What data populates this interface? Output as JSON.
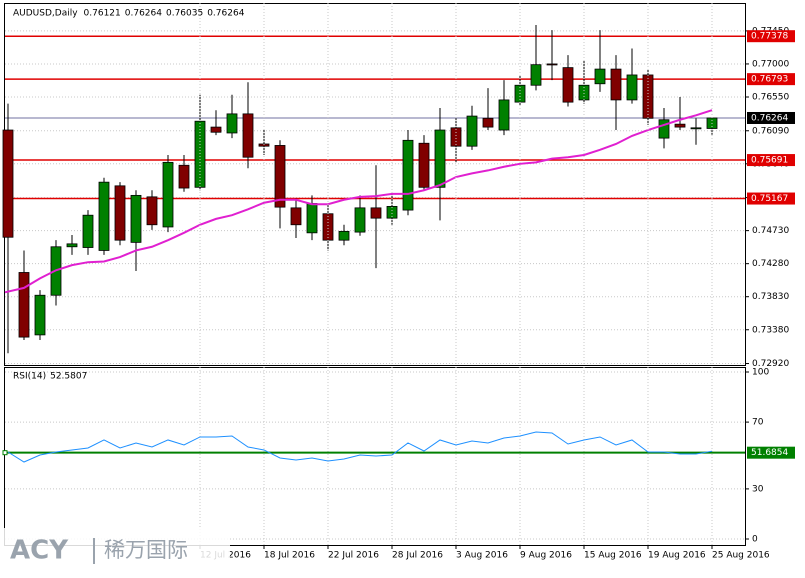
{
  "chart_data": [
    {
      "type": "candlestick",
      "title": "AUDUSD,Daily",
      "header_values": [
        0.76121,
        0.76264,
        0.76035,
        0.76264
      ],
      "open": [
        0.761,
        0.7416,
        0.7331,
        0.7385,
        0.7451,
        0.745,
        0.7446,
        0.7534,
        0.7457,
        0.7519,
        0.7478,
        0.7562,
        0.7532,
        0.7614,
        0.7606,
        0.7632,
        0.7591,
        0.7589,
        0.7504,
        0.747,
        0.7496,
        0.746,
        0.7471,
        0.7504,
        0.749,
        0.7501,
        0.7592,
        0.7532,
        0.7613,
        0.7588,
        0.7626,
        0.761,
        0.7648,
        0.7671,
        0.77,
        0.7695,
        0.7651,
        0.7673,
        0.7693,
        0.7651,
        0.7685,
        0.7599,
        0.7618,
        0.7613,
        0.76121
      ],
      "high": [
        0.7646,
        0.7446,
        0.7392,
        0.746,
        0.7467,
        0.7501,
        0.7545,
        0.7539,
        0.7528,
        0.7528,
        0.7576,
        0.7576,
        0.7658,
        0.7637,
        0.7658,
        0.7675,
        0.761,
        0.7596,
        0.7517,
        0.7521,
        0.7508,
        0.7481,
        0.7521,
        0.7562,
        0.7523,
        0.761,
        0.7603,
        0.764,
        0.7626,
        0.7643,
        0.7667,
        0.7678,
        0.7685,
        0.7753,
        0.7746,
        0.7712,
        0.7705,
        0.7746,
        0.7712,
        0.7721,
        0.7692,
        0.764,
        0.7655,
        0.7626,
        0.76264
      ],
      "low": [
        0.7306,
        0.7324,
        0.7324,
        0.7371,
        0.744,
        0.744,
        0.744,
        0.7453,
        0.7418,
        0.7474,
        0.7471,
        0.7526,
        0.7528,
        0.7603,
        0.7599,
        0.7558,
        0.7576,
        0.7476,
        0.7463,
        0.746,
        0.7446,
        0.7453,
        0.7466,
        0.7422,
        0.7481,
        0.7494,
        0.7528,
        0.7487,
        0.7566,
        0.7583,
        0.761,
        0.7603,
        0.7644,
        0.7664,
        0.7678,
        0.7642,
        0.7646,
        0.7662,
        0.761,
        0.7646,
        0.7617,
        0.7585,
        0.761,
        0.759,
        0.76035
      ],
      "close": [
        0.7464,
        0.7328,
        0.7385,
        0.7451,
        0.7455,
        0.7494,
        0.7539,
        0.746,
        0.7521,
        0.7481,
        0.7566,
        0.7531,
        0.7622,
        0.7607,
        0.7632,
        0.7573,
        0.7588,
        0.7505,
        0.7481,
        0.751,
        0.746,
        0.7472,
        0.7504,
        0.749,
        0.7506,
        0.7596,
        0.7532,
        0.761,
        0.7588,
        0.7629,
        0.7614,
        0.7651,
        0.7671,
        0.7699,
        0.7699,
        0.7648,
        0.7671,
        0.7693,
        0.7651,
        0.7685,
        0.7626,
        0.7624,
        0.7614,
        0.7613,
        0.76264
      ],
      "up_color": "#008000",
      "down_color": "#800000",
      "moving_average": {
        "color": "#e020d0",
        "values": [
          0.7389,
          0.7395,
          0.7408,
          0.7419,
          0.7426,
          0.743,
          0.7431,
          0.7437,
          0.7446,
          0.7451,
          0.746,
          0.747,
          0.7481,
          0.7489,
          0.7494,
          0.7502,
          0.7511,
          0.7515,
          0.7515,
          0.7509,
          0.7509,
          0.7515,
          0.7519,
          0.752,
          0.7523,
          0.7523,
          0.7528,
          0.7535,
          0.7546,
          0.7551,
          0.7555,
          0.756,
          0.7564,
          0.7566,
          0.7571,
          0.7573,
          0.7576,
          0.7583,
          0.7591,
          0.7602,
          0.761,
          0.7617,
          0.7624,
          0.763,
          0.7637
        ]
      },
      "levels": [
        {
          "value": 0.77378,
          "color": "#e00000"
        },
        {
          "value": 0.76793,
          "color": "#e00000"
        },
        {
          "value": 0.75691,
          "color": "#e00000"
        },
        {
          "value": 0.75167,
          "color": "#e00000"
        }
      ],
      "last_price": {
        "value": 0.76264,
        "color": "#7070a0"
      },
      "ylim": [
        0.729,
        0.7783
      ],
      "yticks": [
        {
          "value": 0.7745,
          "label": "0.77450"
        },
        {
          "value": 0.77,
          "label": "0.77000"
        },
        {
          "value": 0.7655,
          "label": "0.76550"
        },
        {
          "value": 0.7609,
          "label": "0.76090"
        },
        {
          "value": 0.7564,
          "label": "0.75640"
        },
        {
          "value": 0.7518,
          "label": "0.75180"
        },
        {
          "value": 0.7473,
          "label": "0.74730"
        },
        {
          "value": 0.7428,
          "label": "0.74280"
        },
        {
          "value": 0.7383,
          "label": "0.73830"
        },
        {
          "value": 0.7338,
          "label": "0.73380"
        },
        {
          "value": 0.7292,
          "label": "0.72920"
        }
      ],
      "grid": true
    },
    {
      "type": "line",
      "title": "RSI(14)",
      "categories": [
        null,
        null,
        null,
        null,
        null,
        null,
        null,
        null,
        null,
        null,
        null,
        null,
        "12 Jul 2016",
        null,
        null,
        null,
        "18 Jul 2016",
        null,
        null,
        null,
        "22 Jul 2016",
        null,
        null,
        null,
        "28 Jul 2016",
        null,
        null,
        null,
        "3 Aug 2016",
        null,
        null,
        null,
        "9 Aug 2016",
        null,
        null,
        null,
        "15 Aug 2016",
        null,
        null,
        null,
        "19 Aug 2016",
        null,
        null,
        null,
        "25 Aug 2016"
      ],
      "series": [
        {
          "color": "#1e90ff",
          "values": [
            52.1,
            46.1,
            50.3,
            52.1,
            53.3,
            54.5,
            59.3,
            54.5,
            57.5,
            55.1,
            59.3,
            56.3,
            61.1,
            61.1,
            61.7,
            55.1,
            53.3,
            48.5,
            47.3,
            48.5,
            46.7,
            47.9,
            50.3,
            49.7,
            50.3,
            57.5,
            52.7,
            59.3,
            56.3,
            58.7,
            57.5,
            60.5,
            61.7,
            64.1,
            63.5,
            56.9,
            59.3,
            61.1,
            56.3,
            59.3,
            52.1,
            52.1,
            50.9,
            50.9,
            52.5807
          ]
        }
      ],
      "level": {
        "value": 51.6854,
        "color": "#008000"
      },
      "ylim": [
        -3.6,
        103
      ],
      "yticks": [
        100,
        70,
        30,
        0
      ],
      "grid": true
    }
  ],
  "watermark": {
    "brand": "ACY",
    "name": "稀万国际"
  }
}
